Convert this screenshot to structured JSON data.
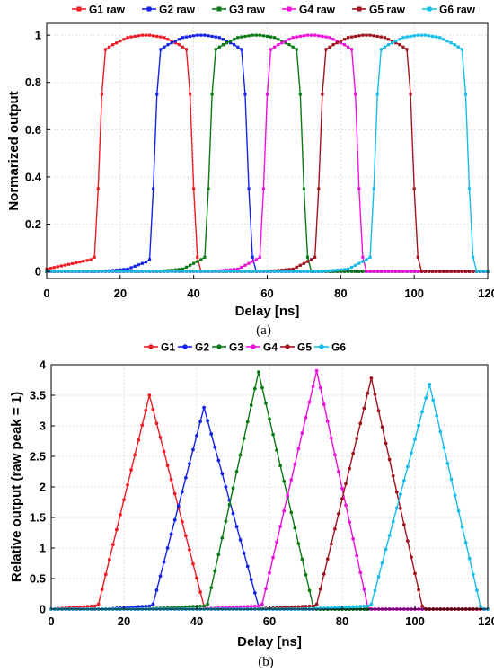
{
  "chart_data": [
    {
      "type": "line",
      "xlabel": "Delay [ns]",
      "ylabel": "Normarized output",
      "xlim": [
        0,
        120
      ],
      "ylim": [
        -0.03,
        1.05
      ],
      "xticks": [
        0,
        20,
        40,
        60,
        80,
        100,
        120
      ],
      "yticks": [
        0,
        0.2,
        0.4,
        0.6,
        0.8,
        1
      ],
      "xtick_labels": [
        "0",
        "20",
        "40",
        "60",
        "80",
        "100",
        "120"
      ],
      "ytick_labels": [
        "0",
        "0.2",
        "0.4",
        "0.6",
        "0.8",
        "1"
      ],
      "grid": true,
      "legend_position": "top",
      "caption": "(a)",
      "series": [
        {
          "name": "G1 raw",
          "color": "#ee1c25",
          "x": [
            0,
            12,
            13,
            14,
            15,
            16,
            18,
            22,
            26,
            27,
            28,
            32,
            36,
            38,
            39,
            40,
            41,
            42,
            43,
            50,
            60,
            120
          ],
          "y": [
            0.01,
            0.05,
            0.06,
            0.35,
            0.75,
            0.94,
            0.96,
            0.99,
            1.0,
            1.0,
            1.0,
            0.99,
            0.96,
            0.94,
            0.75,
            0.35,
            0.06,
            0.0,
            0.0,
            0.0,
            0.0,
            0.0
          ]
        },
        {
          "name": "G2 raw",
          "color": "#1522e8",
          "x": [
            0,
            8,
            15,
            22,
            27,
            28,
            29,
            30,
            31,
            33,
            37,
            41,
            42,
            43,
            47,
            51,
            53,
            54,
            55,
            56,
            57,
            58,
            65,
            120
          ],
          "y": [
            0.0,
            0.0,
            0.0,
            0.01,
            0.04,
            0.05,
            0.35,
            0.75,
            0.94,
            0.96,
            0.99,
            1.0,
            1.0,
            1.0,
            0.99,
            0.96,
            0.94,
            0.75,
            0.35,
            0.06,
            0.0,
            0.0,
            0.0,
            0.0
          ]
        },
        {
          "name": "G3 raw",
          "color": "#0a7a14",
          "x": [
            0,
            25,
            30,
            37,
            42,
            43,
            44,
            45,
            46,
            48,
            52,
            56,
            57,
            58,
            62,
            66,
            68,
            69,
            70,
            71,
            72,
            73,
            80,
            120
          ],
          "y": [
            0.0,
            0.0,
            0.0,
            0.01,
            0.05,
            0.06,
            0.35,
            0.75,
            0.94,
            0.96,
            0.99,
            1.0,
            1.0,
            1.0,
            0.99,
            0.96,
            0.94,
            0.75,
            0.35,
            0.06,
            0.0,
            0.0,
            0.0,
            0.0
          ]
        },
        {
          "name": "G4 raw",
          "color": "#ee11dd",
          "x": [
            0,
            40,
            45,
            52,
            57,
            58,
            59,
            60,
            61,
            63,
            67,
            71,
            72,
            73,
            77,
            81,
            83,
            84,
            85,
            86,
            87,
            88,
            95,
            120
          ],
          "y": [
            0.0,
            0.0,
            0.0,
            0.01,
            0.05,
            0.06,
            0.35,
            0.75,
            0.94,
            0.96,
            0.99,
            1.0,
            1.0,
            1.0,
            0.99,
            0.96,
            0.94,
            0.75,
            0.35,
            0.06,
            0.0,
            0.0,
            0.0,
            0.0
          ]
        },
        {
          "name": "G5 raw",
          "color": "#a0141e",
          "x": [
            0,
            55,
            60,
            67,
            72,
            73,
            74,
            75,
            76,
            78,
            82,
            86,
            87,
            88,
            92,
            96,
            98,
            99,
            100,
            101,
            102,
            103,
            110,
            120
          ],
          "y": [
            0.0,
            0.0,
            0.0,
            0.01,
            0.05,
            0.06,
            0.35,
            0.75,
            0.94,
            0.96,
            0.99,
            1.0,
            1.0,
            1.0,
            0.99,
            0.96,
            0.94,
            0.75,
            0.35,
            0.06,
            0.0,
            0.0,
            0.0,
            0.0
          ]
        },
        {
          "name": "G6 raw",
          "color": "#15bde8",
          "x": [
            0,
            70,
            75,
            82,
            87,
            88,
            89,
            90,
            91,
            93,
            97,
            101,
            102,
            103,
            107,
            111,
            113,
            114,
            115,
            116,
            117,
            118,
            120
          ],
          "y": [
            0.0,
            0.0,
            0.0,
            0.01,
            0.05,
            0.06,
            0.35,
            0.75,
            0.94,
            0.96,
            0.99,
            1.0,
            1.0,
            1.0,
            0.99,
            0.96,
            0.94,
            0.75,
            0.35,
            0.06,
            0.0,
            0.0,
            0.0
          ]
        }
      ]
    },
    {
      "type": "line",
      "xlabel": "Delay [ns]",
      "ylabel": "Relative output (raw peak = 1)",
      "xlim": [
        0,
        120
      ],
      "ylim": [
        0,
        4
      ],
      "xticks": [
        0,
        20,
        40,
        60,
        80,
        100,
        120
      ],
      "yticks": [
        0,
        0.5,
        1,
        1.5,
        2,
        2.5,
        3,
        3.5,
        4
      ],
      "xtick_labels": [
        "0",
        "20",
        "40",
        "60",
        "80",
        "100",
        "120"
      ],
      "ytick_labels": [
        "0",
        "0.5",
        "1",
        "1.5",
        "2",
        "2.5",
        "3",
        "3.5",
        "4"
      ],
      "grid": true,
      "legend_position": "top",
      "caption": "(b)",
      "series": [
        {
          "name": "G1",
          "color": "#ee1c25",
          "x": [
            0,
            12,
            13,
            27,
            42,
            43,
            60,
            120
          ],
          "y": [
            0.0,
            0.05,
            0.08,
            3.5,
            0.05,
            0.0,
            0.0,
            0.0
          ]
        },
        {
          "name": "G2",
          "color": "#1522e8",
          "x": [
            0,
            15,
            27,
            28,
            42,
            57,
            58,
            70,
            120
          ],
          "y": [
            0.0,
            0.0,
            0.05,
            0.08,
            3.3,
            0.05,
            0.0,
            0.0,
            0.0
          ]
        },
        {
          "name": "G3",
          "color": "#0a7a14",
          "x": [
            0,
            25,
            42,
            43,
            57,
            72,
            73,
            85,
            120
          ],
          "y": [
            0.0,
            0.0,
            0.05,
            0.08,
            3.88,
            0.05,
            0.0,
            0.0,
            0.0
          ]
        },
        {
          "name": "G4",
          "color": "#ee11dd",
          "x": [
            0,
            40,
            57,
            58,
            73,
            87,
            88,
            100,
            120
          ],
          "y": [
            0.0,
            0.0,
            0.05,
            0.08,
            3.9,
            0.05,
            0.0,
            0.0,
            0.0
          ]
        },
        {
          "name": "G5",
          "color": "#a0141e",
          "x": [
            0,
            55,
            72,
            73,
            88,
            102,
            103,
            115,
            120
          ],
          "y": [
            0.0,
            0.0,
            0.05,
            0.08,
            3.78,
            0.05,
            0.0,
            0.0,
            0.0
          ]
        },
        {
          "name": "G6",
          "color": "#15bde8",
          "x": [
            0,
            70,
            87,
            88,
            104,
            118,
            119,
            120
          ],
          "y": [
            0.0,
            0.0,
            0.05,
            0.08,
            3.68,
            0.05,
            0.0,
            0.0
          ]
        }
      ]
    }
  ]
}
